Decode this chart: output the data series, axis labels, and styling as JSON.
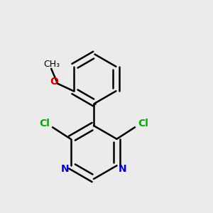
{
  "background_color": "#ebebeb",
  "bond_color": "#000000",
  "N_color": "#0000cc",
  "Cl_color": "#00aa00",
  "O_color": "#cc0000",
  "CH3_color": "#000000",
  "bond_width": 1.8,
  "fig_size": [
    3.0,
    3.0
  ],
  "dpi": 100,
  "xlim": [
    0,
    1
  ],
  "ylim": [
    0,
    1
  ]
}
